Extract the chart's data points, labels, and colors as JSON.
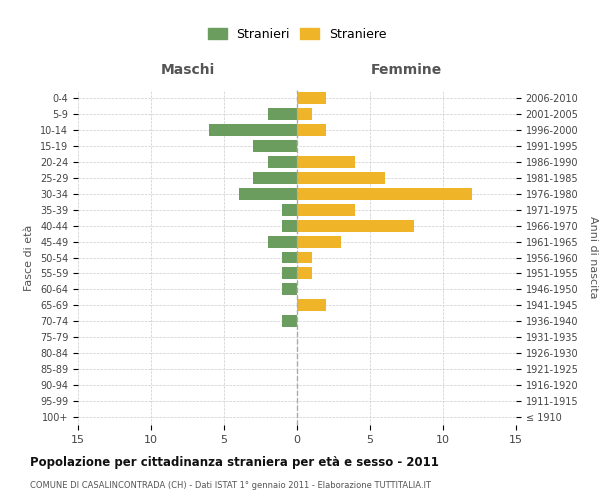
{
  "age_groups": [
    "100+",
    "95-99",
    "90-94",
    "85-89",
    "80-84",
    "75-79",
    "70-74",
    "65-69",
    "60-64",
    "55-59",
    "50-54",
    "45-49",
    "40-44",
    "35-39",
    "30-34",
    "25-29",
    "20-24",
    "15-19",
    "10-14",
    "5-9",
    "0-4"
  ],
  "birth_years": [
    "≤ 1910",
    "1911-1915",
    "1916-1920",
    "1921-1925",
    "1926-1930",
    "1931-1935",
    "1936-1940",
    "1941-1945",
    "1946-1950",
    "1951-1955",
    "1956-1960",
    "1961-1965",
    "1966-1970",
    "1971-1975",
    "1976-1980",
    "1981-1985",
    "1986-1990",
    "1991-1995",
    "1996-2000",
    "2001-2005",
    "2006-2010"
  ],
  "maschi": [
    0,
    0,
    0,
    0,
    0,
    0,
    1,
    0,
    1,
    1,
    1,
    2,
    1,
    1,
    4,
    3,
    2,
    3,
    6,
    2,
    0
  ],
  "femmine": [
    0,
    0,
    0,
    0,
    0,
    0,
    0,
    2,
    0,
    1,
    1,
    3,
    8,
    4,
    12,
    6,
    4,
    0,
    2,
    1,
    2
  ],
  "color_maschi": "#6b9e5e",
  "color_femmine": "#f0b429",
  "title": "Popolazione per cittadinanza straniera per età e sesso - 2011",
  "subtitle": "COMUNE DI CASALINCONTRADA (CH) - Dati ISTAT 1° gennaio 2011 - Elaborazione TUTTITALIA.IT",
  "header_left": "Maschi",
  "header_right": "Femmine",
  "ylabel_left": "Fasce di età",
  "ylabel_right": "Anni di nascita",
  "legend_maschi": "Stranieri",
  "legend_femmine": "Straniere",
  "xlim": 15,
  "bar_height": 0.75,
  "bg": "#ffffff",
  "grid_color": "#cccccc",
  "center_line_color": "#aaaaaa"
}
